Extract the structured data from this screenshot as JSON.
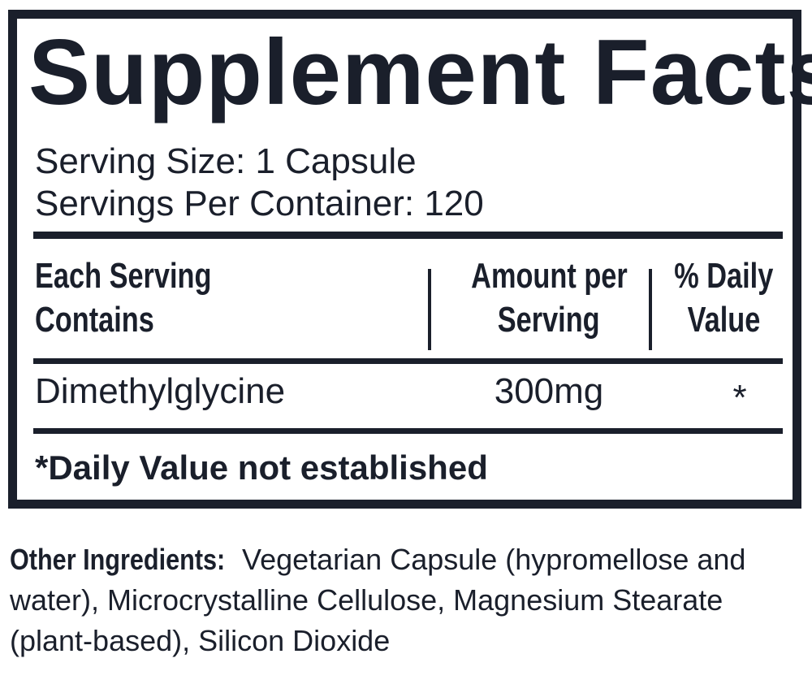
{
  "title": "Supplement Facts",
  "serving_size": "Serving Size: 1 Capsule",
  "servings_per_container": "Servings Per Container: 120",
  "table": {
    "headers": {
      "ingredient_line1": "Each Serving",
      "ingredient_line2": "Contains",
      "amount_line1": "Amount per",
      "amount_line2": "Serving",
      "dv_line1": "% Daily",
      "dv_line2": "Value"
    },
    "rows": [
      {
        "ingredient": "Dimethylglycine",
        "amount": "300mg",
        "dv": "*"
      }
    ]
  },
  "footnote": "*Daily Value not established",
  "other_ingredients": {
    "label": "Other Ingredients:",
    "text": "Vegetarian Capsule (hypromellose and water), Microcrystalline Cellulose, Magnesium Stearate (plant-based), Silicon Dioxide"
  },
  "colors": {
    "ink": "#1a1f2b",
    "background": "#ffffff"
  }
}
